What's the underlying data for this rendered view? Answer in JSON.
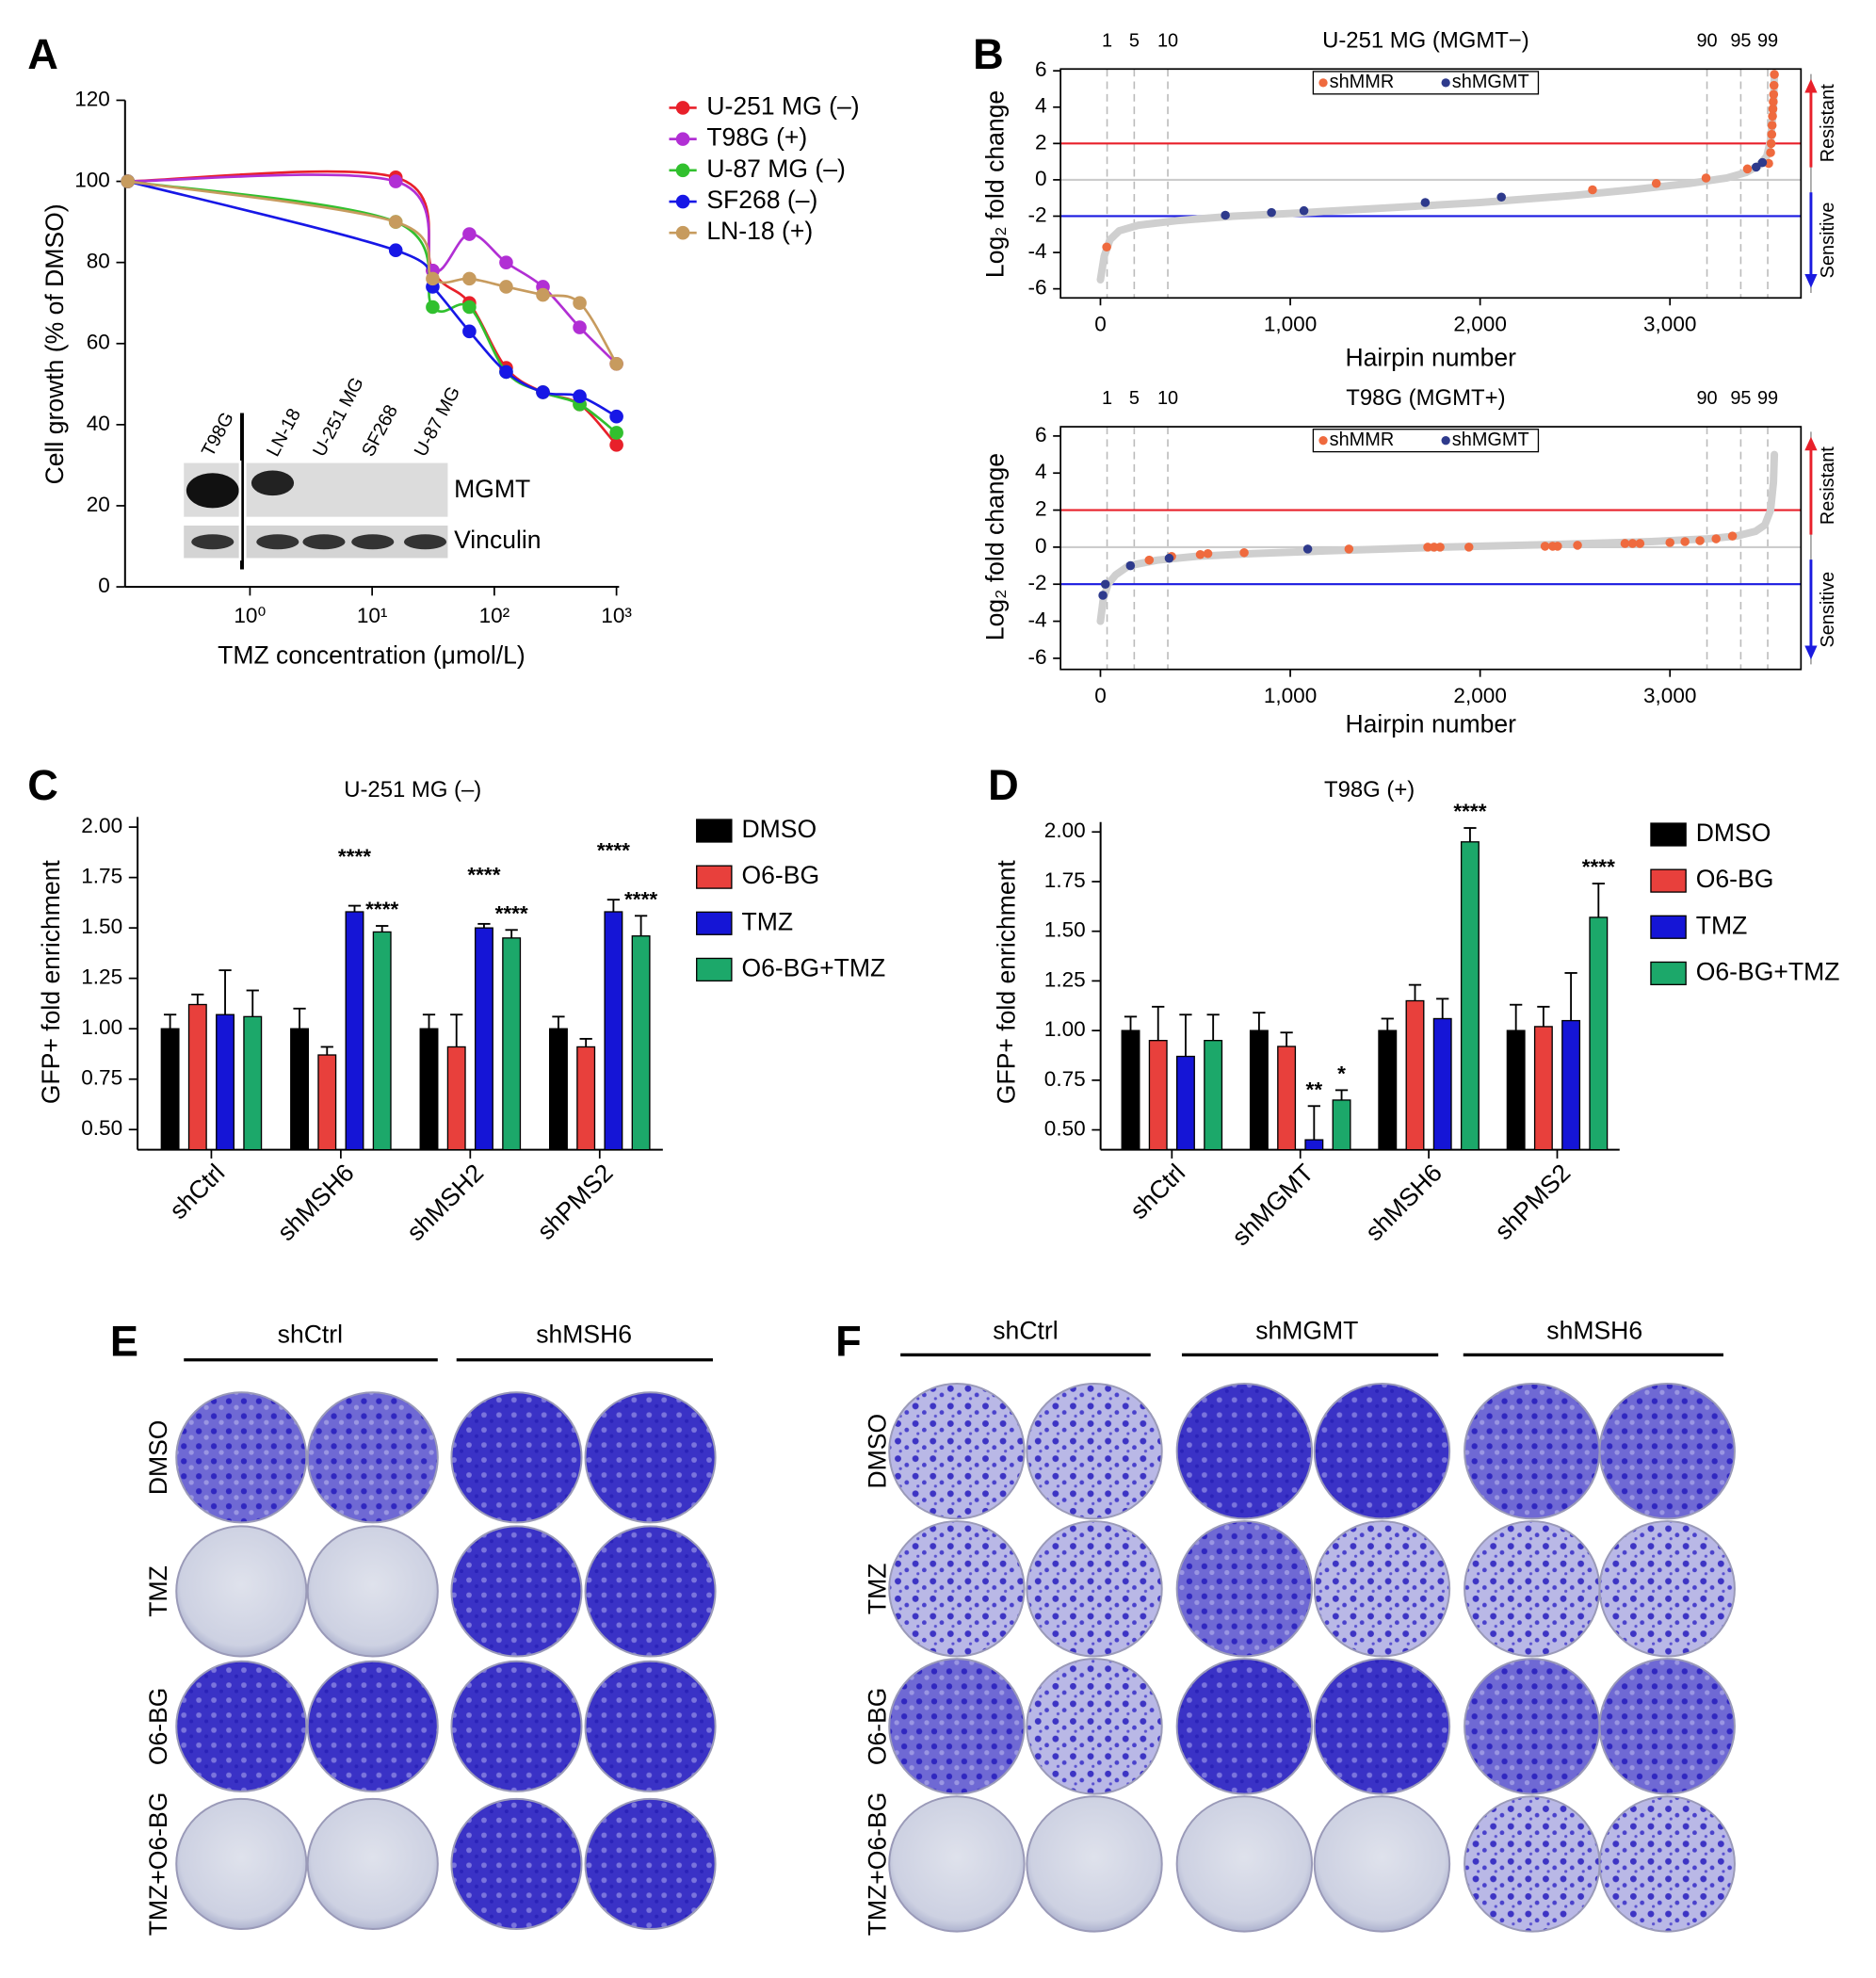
{
  "chart_data": [
    {
      "type": "line",
      "label": "A",
      "xlabel": "TMZ concentration (μmol/L)",
      "ylabel": "Cell growth (% of DMSO)",
      "log_x": true,
      "x": [
        0.1,
        15.6,
        31.3,
        62.5,
        125,
        250,
        500,
        1000
      ],
      "xlim": [
        0.095,
        1050
      ],
      "xticks": [
        {
          "value": 1,
          "label": "10⁰"
        },
        {
          "value": 10,
          "label": "10¹"
        },
        {
          "value": 100,
          "label": "10²"
        },
        {
          "value": 1000,
          "label": "10³"
        }
      ],
      "ylim": [
        0,
        120
      ],
      "yticks": [
        0,
        20,
        40,
        60,
        80,
        100,
        120
      ],
      "series": [
        {
          "name": "U-251 MG (–)",
          "color": "#e8202a",
          "values": [
            100,
            101,
            78,
            70,
            54,
            48,
            45,
            35
          ]
        },
        {
          "name": "T98G (+)",
          "color": "#b12fd4",
          "values": [
            100,
            100,
            78,
            87,
            80,
            74,
            64,
            55
          ]
        },
        {
          "name": "U-87 MG (–)",
          "color": "#31c02e",
          "values": [
            100,
            90,
            69,
            69,
            53,
            48,
            45,
            38
          ]
        },
        {
          "name": "SF268 (–)",
          "color": "#1717e6",
          "values": [
            100,
            83,
            74,
            63,
            53,
            48,
            47,
            42
          ]
        },
        {
          "name": "LN-18 (+)",
          "color": "#c79b5e",
          "values": [
            100,
            90,
            76,
            76,
            74,
            72,
            70,
            55
          ]
        }
      ],
      "inset": {
        "lanes": [
          "T98G",
          "LN-18",
          "U-251 MG",
          "SF268",
          "U-87 MG"
        ],
        "rows": [
          "MGMT",
          "Vinculin"
        ]
      }
    },
    {
      "type": "scatter",
      "label": "B",
      "title": "U-251 MG (MGMT−)",
      "xlabel": "Hairpin number",
      "ylabel": "Log₂ fold change",
      "xlim": [
        -210,
        3690
      ],
      "xticks": [
        0,
        {
          "value": 1000,
          "label": "1,000"
        },
        {
          "value": 2000,
          "label": "2,000"
        },
        {
          "value": 3000,
          "label": "3,000"
        }
      ],
      "ylim": [
        -6.5,
        6.1
      ],
      "yticks": [
        -6,
        -4,
        -2,
        0,
        2,
        4,
        6
      ],
      "percentiles": [
        {
          "value": 35,
          "label": "1"
        },
        {
          "value": 178,
          "label": "5"
        },
        {
          "value": 355,
          "label": "10"
        },
        {
          "value": 3195,
          "label": "90"
        },
        {
          "value": 3373,
          "label": "95"
        },
        {
          "value": 3515,
          "label": "99"
        }
      ],
      "hlines": [
        {
          "value": 2,
          "color": "#e8202a"
        },
        {
          "value": 0,
          "color": "#cccccc"
        },
        {
          "value": -2,
          "color": "#1a1ae0"
        }
      ],
      "arrows": [
        {
          "label": "Resistant",
          "color": "#e8202a"
        },
        {
          "label": "Sensitive",
          "color": "#1a1ae0"
        }
      ],
      "curve": {
        "color": "#cfcfcf",
        "x": [
          0,
          20,
          50,
          100,
          200,
          400,
          700,
          1000,
          1500,
          2000,
          2500,
          2800,
          3100,
          3300,
          3400,
          3470,
          3510,
          3530,
          3545,
          3550
        ],
        "values": [
          -5.5,
          -4.2,
          -3.3,
          -2.8,
          -2.5,
          -2.25,
          -2.0,
          -1.85,
          -1.55,
          -1.25,
          -0.85,
          -0.55,
          -0.2,
          0.1,
          0.4,
          0.8,
          1.3,
          2.2,
          4.0,
          5.8
        ]
      },
      "series": [
        {
          "name": "shMMR",
          "color": "#ef6a3e",
          "x": [
            33,
            2592,
            2928,
            3190,
            3408,
            3520,
            3530,
            3533,
            3536,
            3538,
            3540,
            3542,
            3544,
            3546,
            3548,
            3550
          ],
          "values": [
            -3.7,
            -0.55,
            -0.2,
            0.1,
            0.6,
            0.9,
            1.5,
            2.0,
            2.5,
            3.0,
            3.5,
            3.9,
            4.3,
            4.7,
            5.2,
            5.8
          ]
        },
        {
          "name": "shMGMT",
          "color": "#2e3a8c",
          "x": [
            658,
            901,
            1072,
            1711,
            2112,
            3454,
            3487
          ],
          "values": [
            -1.95,
            -1.8,
            -1.7,
            -1.25,
            -0.95,
            0.7,
            0.95
          ]
        }
      ]
    },
    {
      "type": "scatter",
      "title": "T98G (MGMT+)",
      "xlabel": "Hairpin number",
      "ylabel": "Log₂ fold change",
      "xlim": [
        -210,
        3690
      ],
      "xticks": [
        0,
        {
          "value": 1000,
          "label": "1,000"
        },
        {
          "value": 2000,
          "label": "2,000"
        },
        {
          "value": 3000,
          "label": "3,000"
        }
      ],
      "ylim": [
        -6.6,
        6.5
      ],
      "yticks": [
        -6,
        -4,
        -2,
        0,
        2,
        4,
        6
      ],
      "percentiles": [
        {
          "value": 35,
          "label": "1"
        },
        {
          "value": 178,
          "label": "5"
        },
        {
          "value": 355,
          "label": "10"
        },
        {
          "value": 3195,
          "label": "90"
        },
        {
          "value": 3373,
          "label": "95"
        },
        {
          "value": 3515,
          "label": "99"
        }
      ],
      "hlines": [
        {
          "value": 2,
          "color": "#e8202a"
        },
        {
          "value": 0,
          "color": "#cccccc"
        },
        {
          "value": -2,
          "color": "#1a1ae0"
        }
      ],
      "arrows": [
        {
          "label": "Resistant",
          "color": "#e8202a"
        },
        {
          "label": "Sensitive",
          "color": "#1a1ae0"
        }
      ],
      "curve": {
        "color": "#cfcfcf",
        "x": [
          0,
          15,
          40,
          80,
          150,
          300,
          500,
          800,
          1200,
          1800,
          2400,
          2900,
          3200,
          3350,
          3450,
          3500,
          3530,
          3545,
          3550
        ],
        "values": [
          -4.0,
          -2.8,
          -2.0,
          -1.5,
          -1.0,
          -0.7,
          -0.5,
          -0.35,
          -0.2,
          0.0,
          0.15,
          0.3,
          0.45,
          0.6,
          0.85,
          1.2,
          2.0,
          3.5,
          5.0
        ]
      },
      "series": [
        {
          "name": "shMMR",
          "color": "#ef6a3e",
          "x": [
            257,
            375,
            526,
            566,
            757,
            1309,
            1724,
            1757,
            1789,
            1941,
            2342,
            2382,
            2408,
            2513,
            2763,
            2803,
            2842,
            3000,
            3079,
            3158,
            3243,
            3329
          ],
          "values": [
            -0.7,
            -0.5,
            -0.4,
            -0.35,
            -0.3,
            -0.1,
            0.0,
            0.0,
            0.0,
            0.0,
            0.05,
            0.05,
            0.05,
            0.1,
            0.2,
            0.2,
            0.2,
            0.25,
            0.3,
            0.35,
            0.45,
            0.6
          ]
        },
        {
          "name": "shMGMT",
          "color": "#2e3a8c",
          "x": [
            13,
            26,
            158,
            362,
            1092
          ],
          "values": [
            -2.6,
            -2.0,
            -1.0,
            -0.6,
            -0.1
          ]
        }
      ]
    },
    {
      "type": "bar",
      "label": "C",
      "title": "U-251 MG (–)",
      "ylabel": "GFP+ fold enrichment",
      "categories": [
        "shCtrl",
        "shMSH6",
        "shMSH2",
        "shPMS2"
      ],
      "ylim": [
        0.4,
        2.05
      ],
      "yticks": [
        {
          "value": 0.5,
          "label": "0.50"
        },
        0.75,
        {
          "value": 1,
          "label": "1.00"
        },
        1.25,
        {
          "value": 1.5,
          "label": "1.50"
        },
        1.75,
        {
          "value": 2,
          "label": "2.00"
        }
      ],
      "series": [
        {
          "name": "DMSO",
          "color": "#000000",
          "values": [
            1.0,
            1.0,
            1.0,
            1.0
          ],
          "errors": [
            0.07,
            0.1,
            0.07,
            0.06
          ]
        },
        {
          "name": "O6-BG",
          "color": "#e8403c",
          "values": [
            1.12,
            0.87,
            0.91,
            0.91
          ],
          "errors": [
            0.05,
            0.04,
            0.16,
            0.04
          ]
        },
        {
          "name": "TMZ",
          "color": "#1515d6",
          "values": [
            1.07,
            1.58,
            1.5,
            1.58
          ],
          "errors": [
            0.22,
            0.03,
            0.02,
            0.06
          ],
          "annotations": [
            null,
            "****",
            "****",
            "****"
          ]
        },
        {
          "name": "O6-BG+TMZ",
          "color": "#1ca86a",
          "values": [
            1.06,
            1.48,
            1.45,
            1.46
          ],
          "errors": [
            0.13,
            0.03,
            0.04,
            0.1
          ],
          "annotations": [
            null,
            "****",
            "****",
            "****"
          ]
        }
      ]
    },
    {
      "type": "bar",
      "label": "D",
      "title": "T98G (+)",
      "ylabel": "GFP+ fold enrichment",
      "categories": [
        "shCtrl",
        "shMGMT",
        "shMSH6",
        "shPMS2"
      ],
      "ylim": [
        0.4,
        2.05
      ],
      "yticks": [
        {
          "value": 0.5,
          "label": "0.50"
        },
        0.75,
        {
          "value": 1,
          "label": "1.00"
        },
        1.25,
        {
          "value": 1.5,
          "label": "1.50"
        },
        1.75,
        {
          "value": 2,
          "label": "2.00"
        }
      ],
      "series": [
        {
          "name": "DMSO",
          "color": "#000000",
          "values": [
            1.0,
            1.0,
            1.0,
            1.0
          ],
          "errors": [
            0.07,
            0.09,
            0.06,
            0.13
          ]
        },
        {
          "name": "O6-BG",
          "color": "#e8403c",
          "values": [
            0.95,
            0.92,
            1.15,
            1.02
          ],
          "errors": [
            0.17,
            0.07,
            0.08,
            0.1
          ]
        },
        {
          "name": "TMZ",
          "color": "#1515d6",
          "values": [
            0.87,
            0.45,
            1.06,
            1.05
          ],
          "errors": [
            0.21,
            0.17,
            0.1,
            0.24
          ],
          "annotations": [
            null,
            "**",
            null,
            null
          ]
        },
        {
          "name": "O6-BG+TMZ",
          "color": "#1ca86a",
          "values": [
            0.95,
            0.65,
            1.95,
            1.57
          ],
          "errors": [
            0.13,
            0.05,
            0.07,
            0.17
          ],
          "annotations": [
            null,
            "*",
            "****",
            "****"
          ]
        }
      ]
    }
  ],
  "plates": [
    {
      "label": "E",
      "columns": [
        "shCtrl",
        "shMSH6"
      ],
      "rows": [
        "DMSO",
        "TMZ",
        "O6-BG",
        "TMZ+O6-BG"
      ]
    },
    {
      "label": "F",
      "columns": [
        "shCtrl",
        "shMGMT",
        "shMSH6"
      ],
      "rows": [
        "DMSO",
        "TMZ",
        "O6-BG",
        "TMZ+O6-BG"
      ]
    }
  ]
}
